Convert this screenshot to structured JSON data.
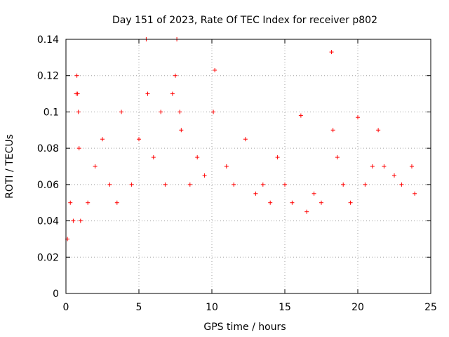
{
  "chart_data": {
    "type": "scatter",
    "title": "Day 151 of 2023, Rate Of TEC Index for receiver p802",
    "xlabel": "GPS time / hours",
    "ylabel": "ROTI / TECUs",
    "xlim": [
      0,
      25
    ],
    "ylim": [
      0,
      0.14
    ],
    "xticks": [
      0,
      5,
      10,
      15,
      20,
      25
    ],
    "yticks": [
      0,
      0.02,
      0.04,
      0.06,
      0.08,
      0.1,
      0.12,
      0.14
    ],
    "grid": true,
    "marker": "plus",
    "colors": {
      "series": "#ff0000",
      "grid": "#a0a0a0",
      "axis": "#000000"
    },
    "series": [
      {
        "x": [
          0.1,
          0.3,
          0.5,
          0.7,
          0.75,
          0.8,
          0.85,
          0.9,
          1.0,
          1.5,
          2.0,
          2.5,
          3.0,
          3.5,
          3.8,
          4.5,
          5.0,
          5.5,
          5.6,
          6.0,
          6.5,
          6.8,
          7.3,
          7.5,
          7.6,
          7.8,
          7.9,
          8.5,
          9.0,
          9.5,
          10.1,
          10.2,
          11.0,
          11.5,
          12.3,
          13.0,
          13.5,
          14.0,
          14.5,
          15.0,
          15.5,
          16.1,
          16.5,
          17.0,
          17.5,
          18.2,
          18.3,
          18.6,
          19.0,
          19.5,
          20.0,
          20.5,
          21.0,
          21.4,
          21.8,
          22.5,
          23.0,
          23.7,
          23.9
        ],
        "y": [
          0.03,
          0.05,
          0.04,
          0.11,
          0.12,
          0.11,
          0.1,
          0.08,
          0.04,
          0.05,
          0.07,
          0.085,
          0.06,
          0.05,
          0.1,
          0.06,
          0.085,
          0.14,
          0.11,
          0.075,
          0.1,
          0.06,
          0.11,
          0.12,
          0.14,
          0.1,
          0.09,
          0.06,
          0.075,
          0.065,
          0.1,
          0.123,
          0.07,
          0.06,
          0.085,
          0.055,
          0.06,
          0.05,
          0.075,
          0.06,
          0.05,
          0.098,
          0.045,
          0.055,
          0.05,
          0.133,
          0.09,
          0.075,
          0.06,
          0.05,
          0.097,
          0.06,
          0.07,
          0.09,
          0.07,
          0.065,
          0.06,
          0.07,
          0.055
        ]
      }
    ]
  }
}
